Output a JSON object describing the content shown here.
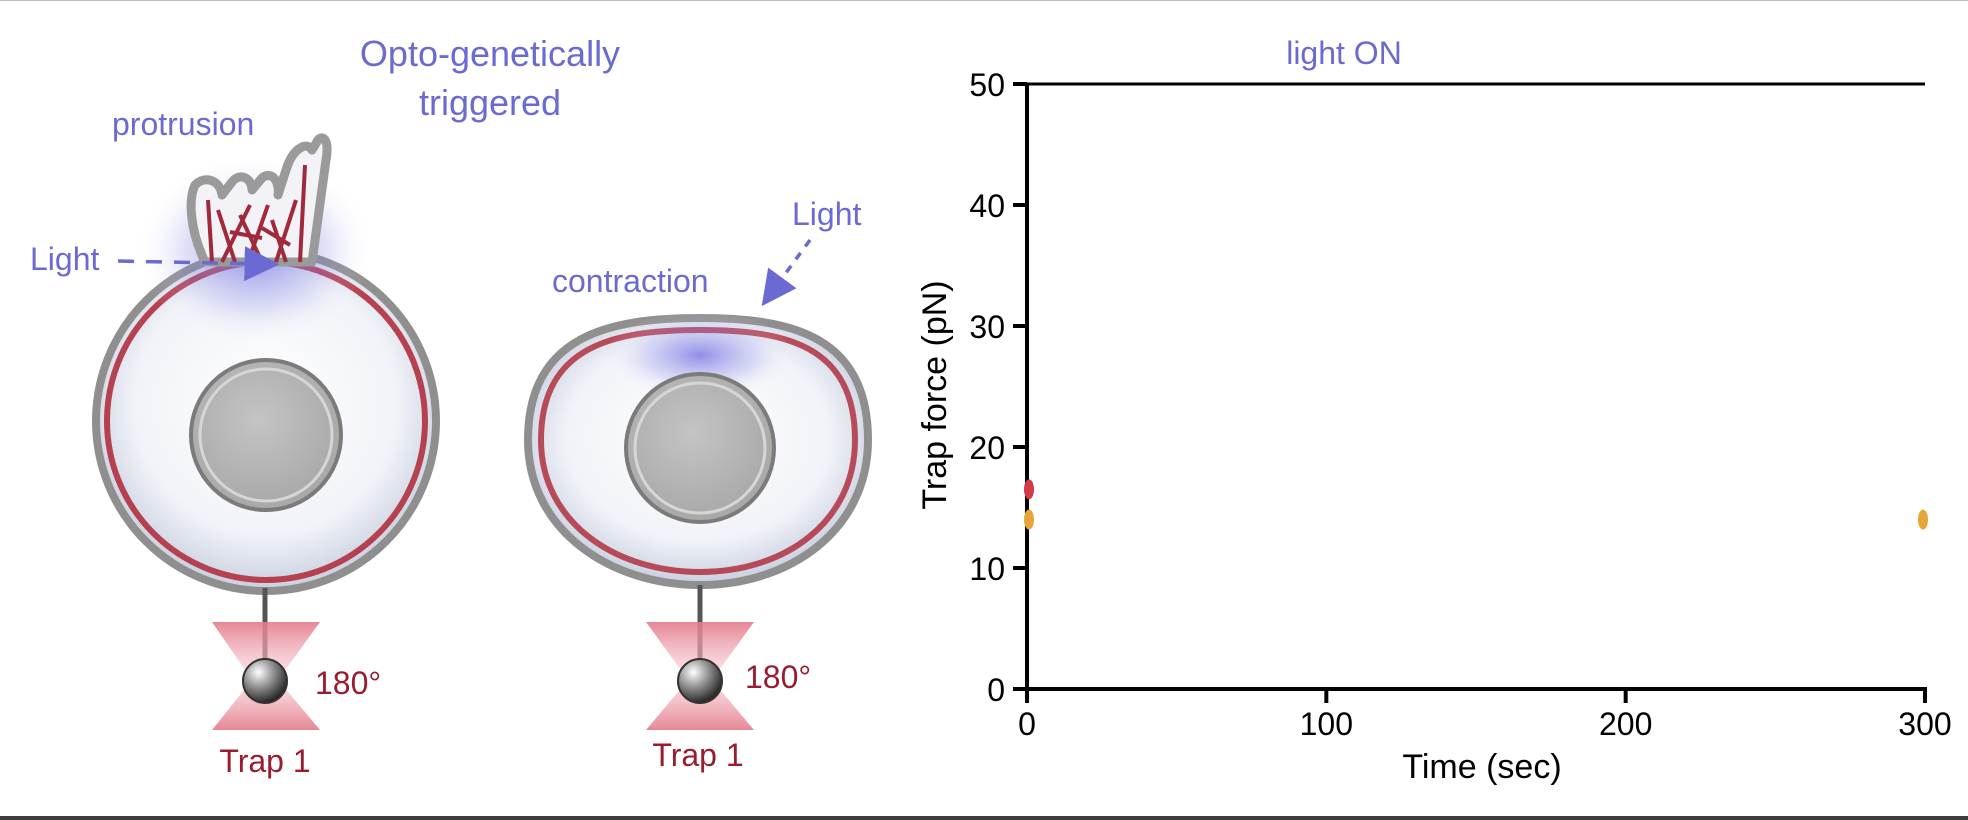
{
  "diagram": {
    "header": "Opto-genetically\ntriggered",
    "protrusion_label": "protrusion",
    "contraction_label": "contraction",
    "light_label_left": "Light",
    "light_label_right": "Light",
    "angle_left": "180°",
    "angle_right": "180°",
    "trap_left": "Trap 1",
    "trap_right": "Trap 1",
    "colors": {
      "label_blue": "#6a6ad2",
      "label_red": "#9b1c2e",
      "membrane_red": "#b0303f",
      "nucleus_gray": "#b5b5b5"
    }
  },
  "chart_data": {
    "type": "line",
    "title": "light ON",
    "xlabel": "Time (sec)",
    "ylabel": "Trap force (pN)",
    "xlim": [
      0,
      300
    ],
    "ylim": [
      0,
      50
    ],
    "xticks": [
      0,
      100,
      200,
      300
    ],
    "yticks": [
      0,
      10,
      20,
      30,
      40,
      50
    ],
    "xtick_labels": [
      "0",
      "100",
      "200",
      "300"
    ],
    "ytick_labels": [
      "0",
      "10",
      "20",
      "30",
      "40",
      "50"
    ],
    "series": [
      {
        "color": "#e8a53a",
        "points": [
          [
            0,
            14
          ],
          [
            300,
            14
          ]
        ]
      },
      {
        "color": "#d33a4a",
        "points": [
          [
            0,
            16.5
          ]
        ]
      }
    ]
  }
}
